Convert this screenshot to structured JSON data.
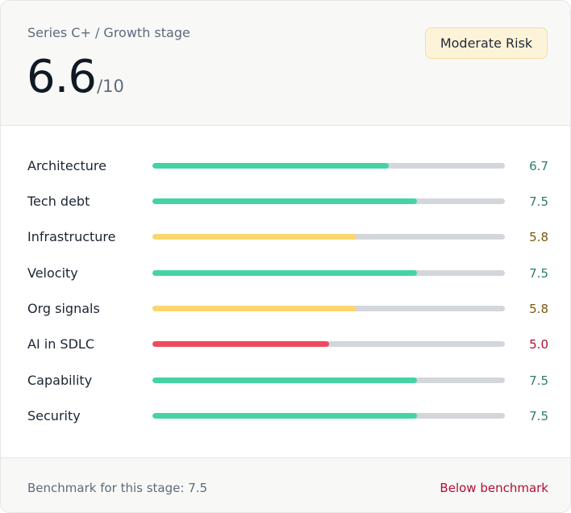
{
  "header": {
    "stage": "Series C+ / Growth stage",
    "score": "6.6",
    "score_suffix": "/10",
    "risk_badge": "Moderate Risk"
  },
  "metrics": [
    {
      "label": "Architecture",
      "value_text": "6.7",
      "value": 6.7,
      "level": "good"
    },
    {
      "label": "Tech debt",
      "value_text": "7.5",
      "value": 7.5,
      "level": "good"
    },
    {
      "label": "Infrastructure",
      "value_text": "5.8",
      "value": 5.8,
      "level": "warn"
    },
    {
      "label": "Velocity",
      "value_text": "7.5",
      "value": 7.5,
      "level": "good"
    },
    {
      "label": "Org signals",
      "value_text": "5.8",
      "value": 5.8,
      "level": "warn"
    },
    {
      "label": "AI in SDLC",
      "value_text": "5.0",
      "value": 5.0,
      "level": "bad"
    },
    {
      "label": "Capability",
      "value_text": "7.5",
      "value": 7.5,
      "level": "good"
    },
    {
      "label": "Security",
      "value_text": "7.5",
      "value": 7.5,
      "level": "good"
    }
  ],
  "scale_max": 10,
  "colors": {
    "good_bar": "#45d3a5",
    "good_text": "#2e7d6b",
    "warn_bar": "#f9d66f",
    "warn_text": "#7a5a06",
    "bad_bar": "#ef4b5d",
    "bad_text": "#b30e32"
  },
  "footer": {
    "benchmark": "Benchmark for this stage: 7.5",
    "status": "Below benchmark"
  }
}
